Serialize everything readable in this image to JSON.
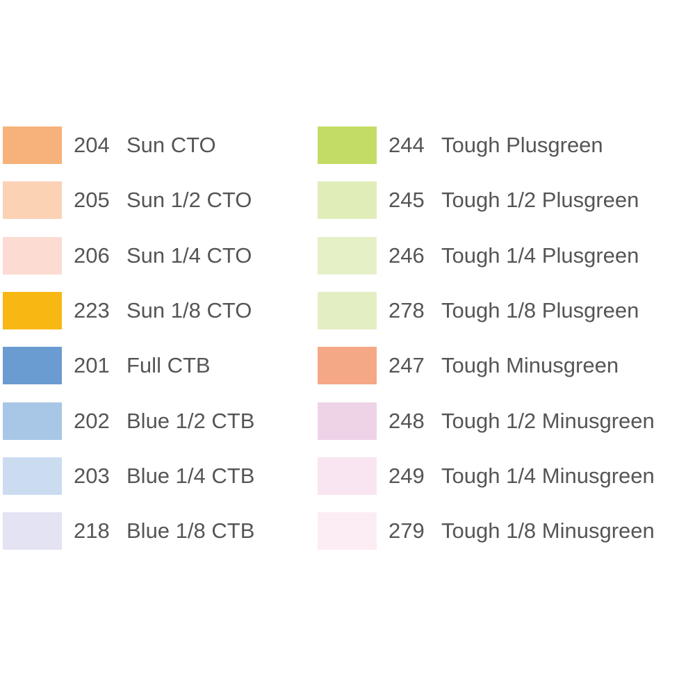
{
  "columns": [
    {
      "items": [
        {
          "code": "204",
          "name": "Sun CTO",
          "color": "#f6b27a"
        },
        {
          "code": "205",
          "name": "Sun 1/2 CTO",
          "color": "#fcd2b5"
        },
        {
          "code": "206",
          "name": "Sun 1/4 CTO",
          "color": "#fcdcd2"
        },
        {
          "code": "223",
          "name": "Sun 1/8 CTO",
          "color": "#f8b713"
        },
        {
          "code": "201",
          "name": "Full CTB",
          "color": "#6a9bd1"
        },
        {
          "code": "202",
          "name": "Blue 1/2 CTB",
          "color": "#a8c6e6"
        },
        {
          "code": "203",
          "name": "Blue 1/4 CTB",
          "color": "#cbdcf1"
        },
        {
          "code": "218",
          "name": "Blue 1/8 CTB",
          "color": "#e4e3f3"
        }
      ]
    },
    {
      "items": [
        {
          "code": "244",
          "name": "Tough Plusgreen",
          "color": "#c3dc66"
        },
        {
          "code": "245",
          "name": "Tough 1/2 Plusgreen",
          "color": "#e0edb8"
        },
        {
          "code": "246",
          "name": "Tough 1/4 Plusgreen",
          "color": "#e6f0c7"
        },
        {
          "code": "278",
          "name": "Tough 1/8 Plusgreen",
          "color": "#e3efc3"
        },
        {
          "code": "247",
          "name": "Tough Minusgreen",
          "color": "#f4a886"
        },
        {
          "code": "248",
          "name": "Tough 1/2 Minusgreen",
          "color": "#eed3e7"
        },
        {
          "code": "249",
          "name": "Tough 1/4 Minusgreen",
          "color": "#f9e4f1"
        },
        {
          "code": "279",
          "name": "Tough 1/8 Minusgreen",
          "color": "#fcecf4"
        }
      ]
    }
  ]
}
